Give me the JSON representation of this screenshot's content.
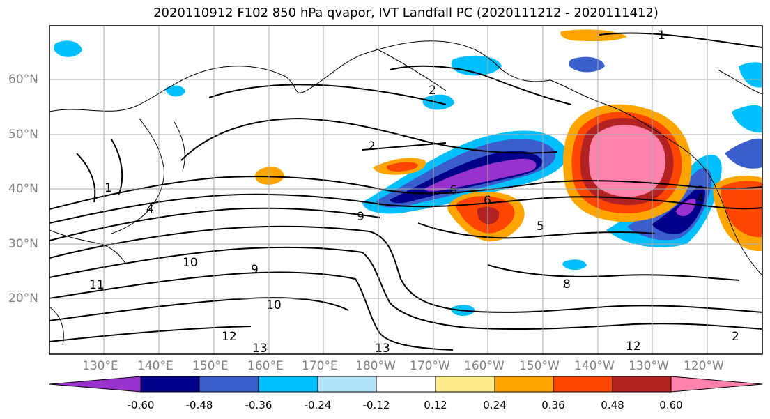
{
  "title": "2020110912 F102 850 hPa qvapor, IVT Landfall PC (2020111212 - 2020111412)",
  "axes": {
    "lat_labels": [
      "60°N",
      "50°N",
      "40°N",
      "30°N",
      "20°N"
    ],
    "lon_labels": [
      "130°E",
      "140°E",
      "150°E",
      "160°E",
      "170°E",
      "180°W",
      "170°W",
      "160°W",
      "150°W",
      "140°W",
      "130°W",
      "120°W"
    ],
    "grid": true
  },
  "colorbar": {
    "colors": [
      "#9932cc",
      "#00008b",
      "#3a5fcd",
      "#00bfff",
      "#b2e5fc",
      "#ffffff",
      "#ffec8b",
      "#ffa500",
      "#ff4500",
      "#b22222",
      "#ff82ab"
    ],
    "tick_labels": [
      "-0.60",
      "-0.48",
      "-0.36",
      "-0.24",
      "-0.12",
      "0.12",
      "0.24",
      "0.36",
      "0.48",
      "0.60"
    ],
    "extend": "both"
  },
  "contour_labels": [
    "1",
    "2",
    "2",
    "4",
    "6",
    "6",
    "8",
    "9",
    "10",
    "10",
    "11",
    "12",
    "12",
    "13",
    "13",
    "1",
    "2",
    "4",
    "5",
    "9"
  ]
}
